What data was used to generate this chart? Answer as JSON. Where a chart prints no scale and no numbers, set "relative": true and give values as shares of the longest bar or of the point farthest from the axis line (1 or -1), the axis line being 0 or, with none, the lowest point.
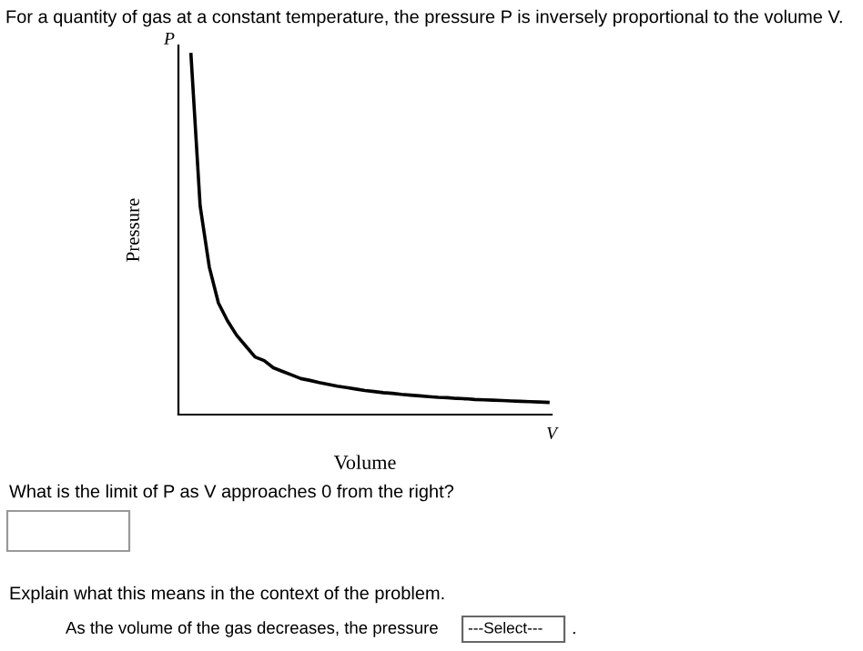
{
  "chart_data": {
    "type": "line",
    "title": "For a quantity of gas at a constant temperature, the pressure P is inversely proportional to the volume V.",
    "xlabel": "Volume",
    "ylabel": "Pressure",
    "relative": true,
    "color": "#000000",
    "marker": "none",
    "line_style": "solid",
    "legend": false,
    "categories": [
      null,
      null,
      null,
      null,
      null,
      null,
      null,
      null,
      null,
      null,
      null,
      null,
      null,
      null,
      null,
      null,
      null,
      null,
      null,
      null,
      null,
      null,
      null,
      null,
      null,
      null,
      null,
      null,
      null,
      null,
      null,
      null,
      null,
      null,
      null,
      null,
      null,
      null,
      null,
      null
    ],
    "values": [
      1.0,
      0.58,
      0.41,
      0.31,
      0.26,
      0.22,
      0.19,
      0.16,
      0.15,
      0.13,
      0.12,
      0.11,
      0.1,
      0.095,
      0.089,
      0.084,
      0.079,
      0.075,
      0.071,
      0.067,
      0.064,
      0.061,
      0.059,
      0.056,
      0.054,
      0.052,
      0.05,
      0.048,
      0.047,
      0.045,
      0.044,
      0.042,
      0.041,
      0.04,
      0.039,
      0.038,
      0.037,
      0.036,
      0.035,
      0.034
    ],
    "annotations": [
      "P",
      "V",
      "What is the limit of P as V approaches 0 from the right?",
      "Explain what this means in the context of the problem.",
      "As the volume of the gas decreases, the pressure",
      "---Select---",
      "."
    ]
  }
}
